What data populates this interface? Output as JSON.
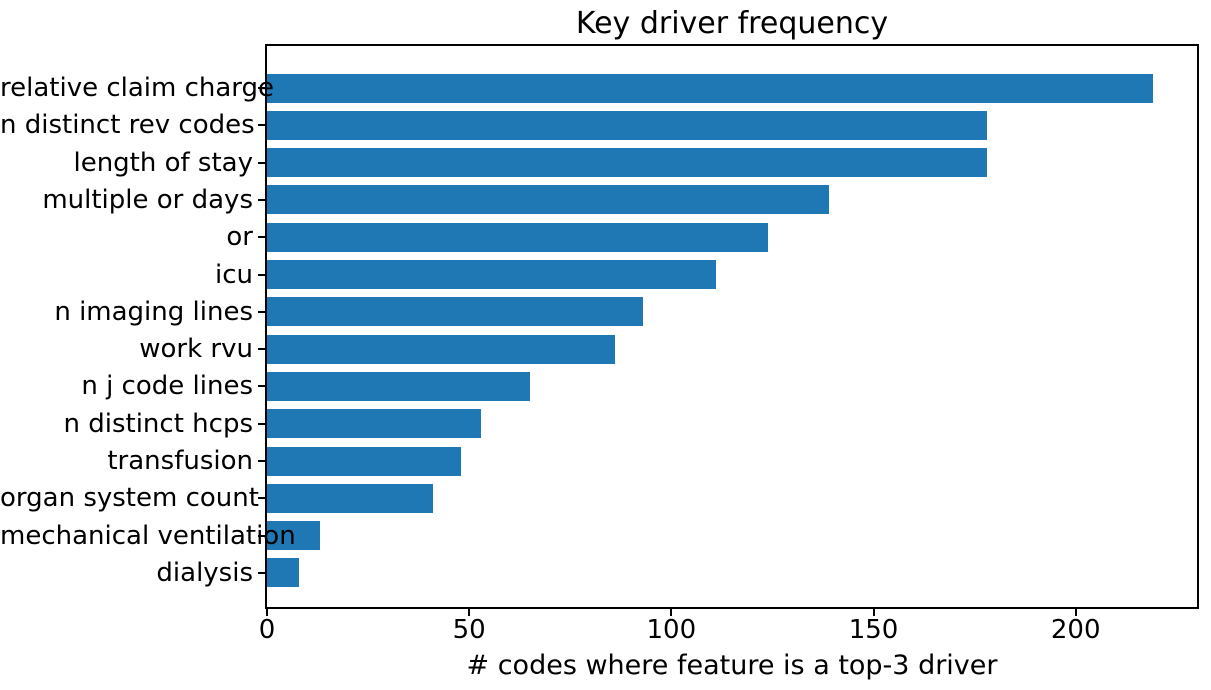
{
  "chart_data": {
    "type": "bar",
    "orientation": "horizontal",
    "title": "Key driver frequency",
    "xlabel": "# codes where feature is a top-3 driver",
    "ylabel": "",
    "categories": [
      "relative claim charge",
      "n distinct rev codes",
      "length of stay",
      "multiple or days",
      "or",
      "icu",
      "n imaging lines",
      "work rvu",
      "n j code lines",
      "n distinct hcps",
      "transfusion",
      "organ system count",
      "mechanical ventilation",
      "dialysis"
    ],
    "values": [
      219,
      178,
      178,
      139,
      124,
      111,
      93,
      86,
      65,
      53,
      48,
      41,
      13,
      8
    ],
    "xticks": [
      0,
      50,
      100,
      150,
      200
    ],
    "xlim": [
      0,
      230
    ],
    "bar_color": "#1f77b4",
    "text_color": "#000000",
    "grid": false,
    "legend": null
  }
}
